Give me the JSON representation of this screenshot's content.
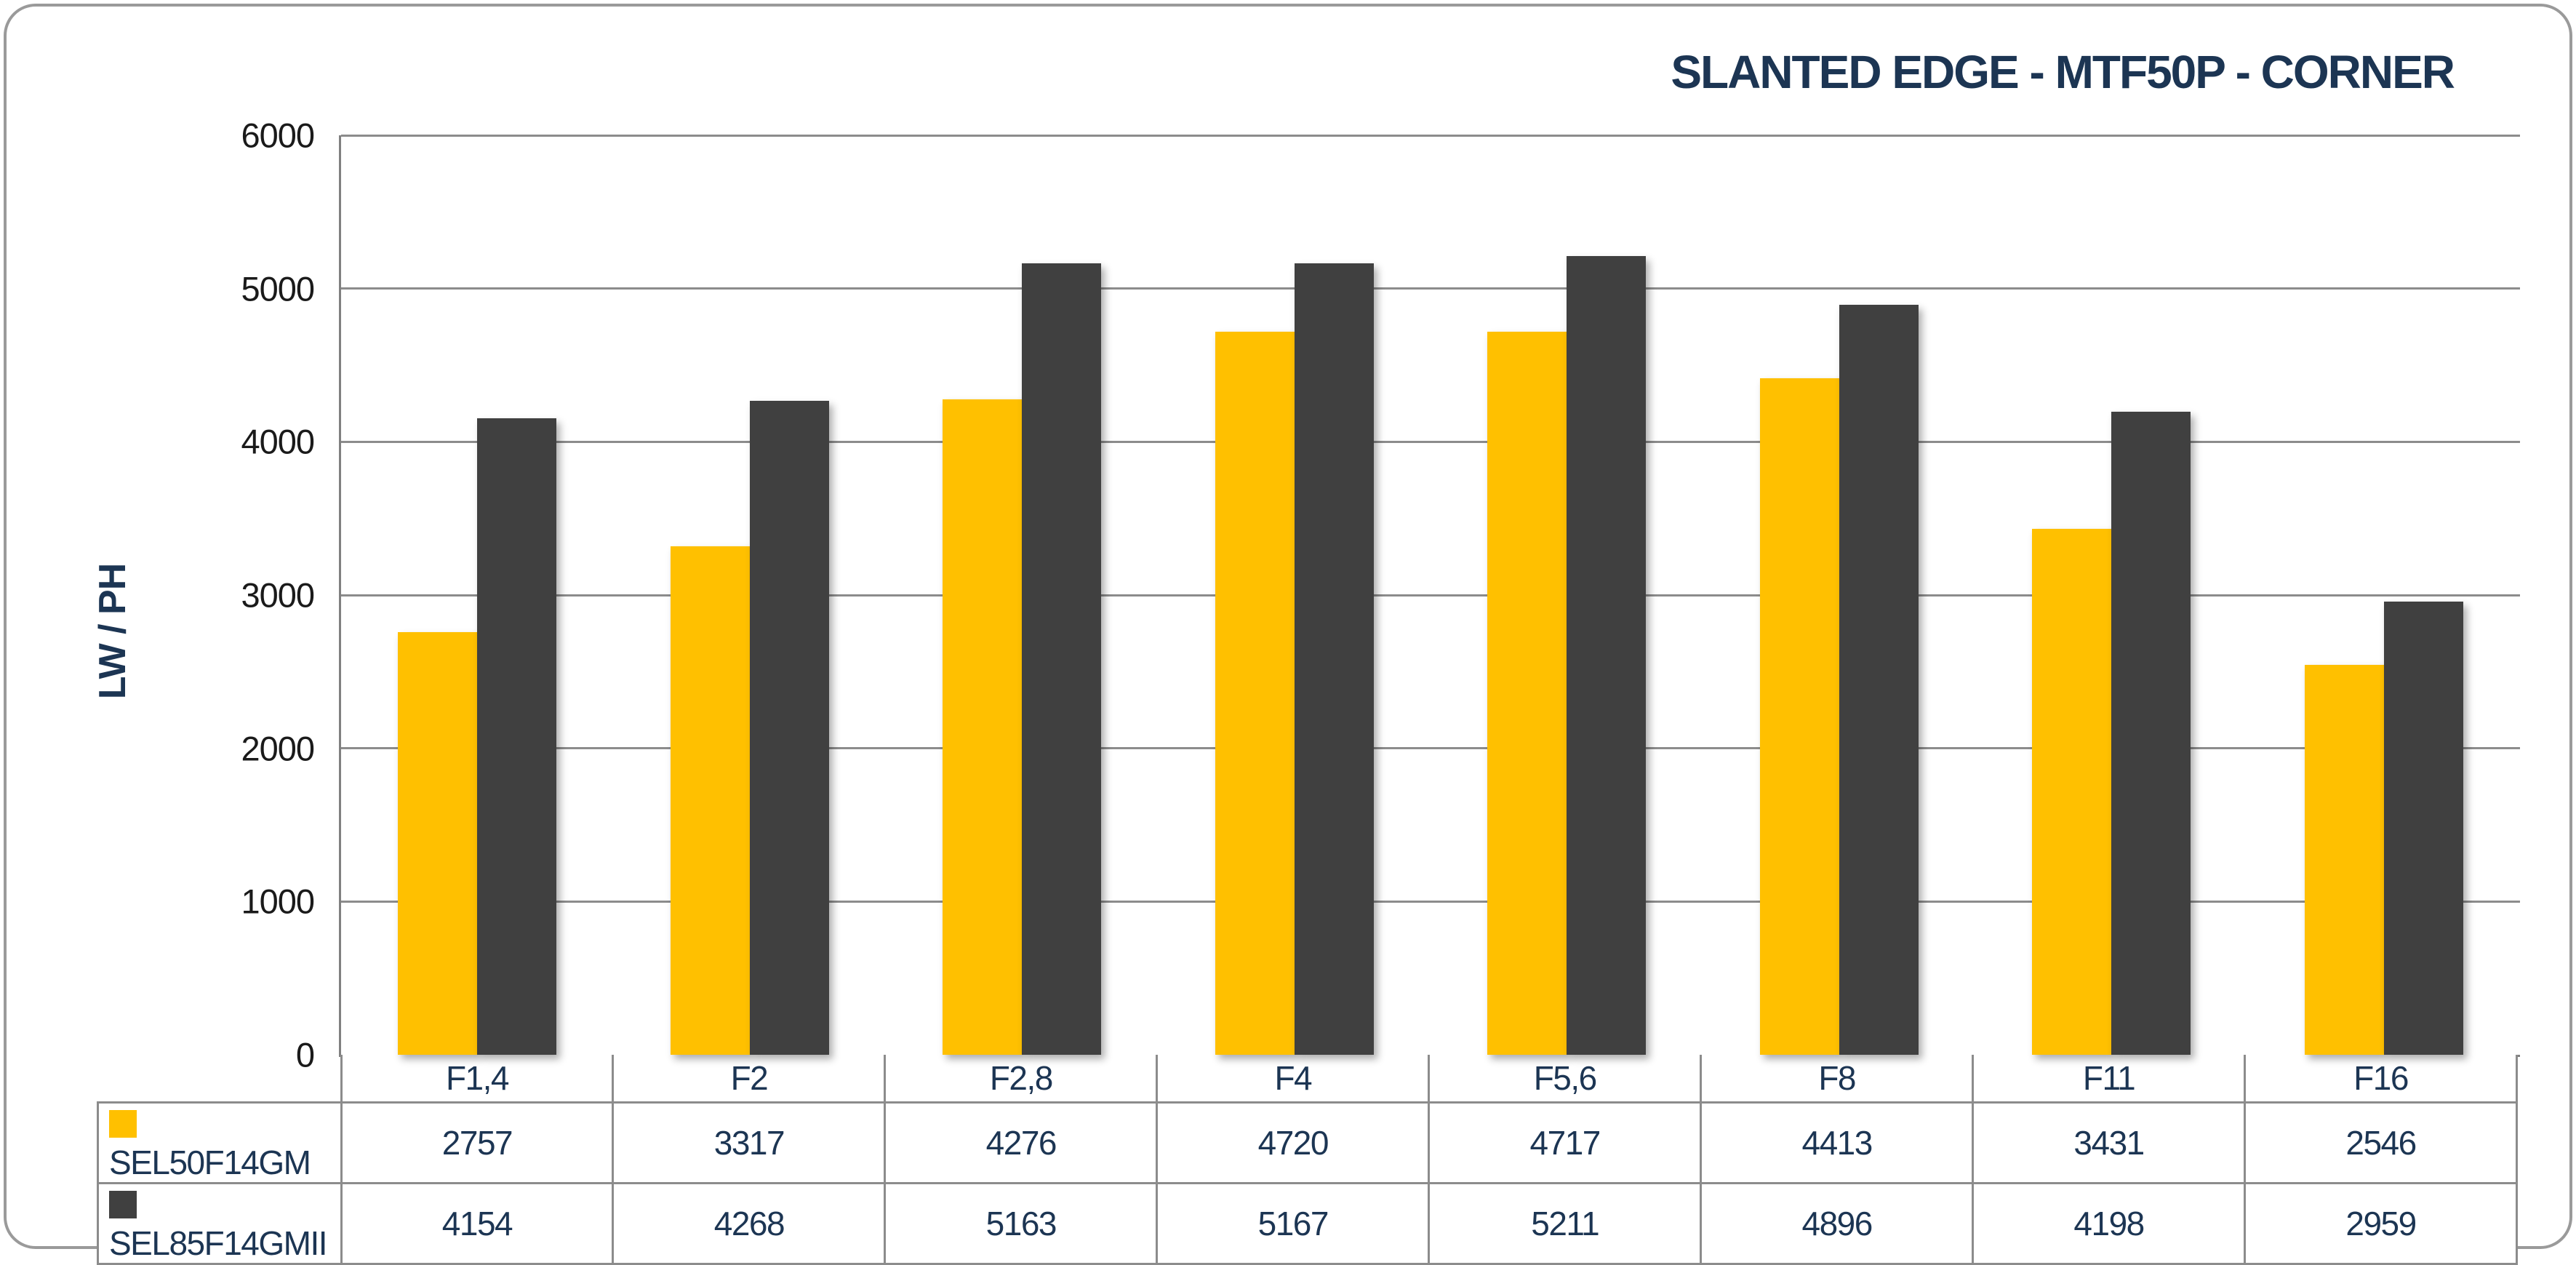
{
  "chart_data": {
    "type": "bar",
    "title": "SLANTED EDGE - MTF50P - CORNER",
    "ylabel": "LW / PH",
    "xlabel": "",
    "ylim": [
      0,
      6000
    ],
    "yticks": [
      0,
      1000,
      2000,
      3000,
      4000,
      5000,
      6000
    ],
    "grid": "horizontal",
    "legend_position": "table-left",
    "categories": [
      "F1,4",
      "F2",
      "F2,8",
      "F4",
      "F5,6",
      "F8",
      "F11",
      "F16"
    ],
    "series": [
      {
        "name": "SEL50F14GM",
        "color": "#FFC000",
        "values": [
          2757,
          3317,
          4276,
          4720,
          4717,
          4413,
          3431,
          2546
        ]
      },
      {
        "name": "SEL85F14GMII",
        "color": "#404040",
        "values": [
          4154,
          4268,
          5163,
          5167,
          5211,
          4896,
          4198,
          2959
        ]
      }
    ]
  },
  "colors": {
    "heading_text": "#1c3553",
    "axis_tick_text": "#1a1a1a",
    "gridline": "#8c8c8c",
    "axis_line": "#808080",
    "table_border": "#8c8c8c",
    "frame_border": "#9a9a9a",
    "series_1": "#FFC000",
    "series_2": "#404040"
  }
}
